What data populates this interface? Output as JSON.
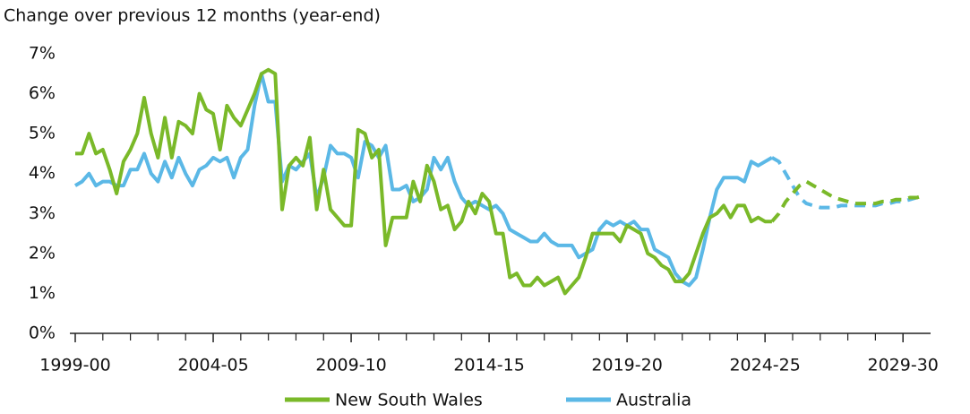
{
  "chart_data": {
    "type": "line",
    "y_axis_label": "Change over previous 12 months (year-end)",
    "x": [
      1999,
      1999.25,
      1999.5,
      1999.75,
      2000,
      2000.25,
      2000.5,
      2000.75,
      2001,
      2001.25,
      2001.5,
      2001.75,
      2002,
      2002.25,
      2002.5,
      2002.75,
      2003,
      2003.25,
      2003.5,
      2003.75,
      2004,
      2004.25,
      2004.5,
      2004.75,
      2005,
      2005.25,
      2005.5,
      2005.75,
      2006,
      2006.25,
      2006.5,
      2006.75,
      2007,
      2007.25,
      2007.5,
      2007.75,
      2008,
      2008.25,
      2008.5,
      2008.75,
      2009,
      2009.25,
      2009.5,
      2009.75,
      2010,
      2010.25,
      2010.5,
      2010.75,
      2011,
      2011.25,
      2011.5,
      2011.75,
      2012,
      2012.25,
      2012.5,
      2012.75,
      2013,
      2013.25,
      2013.5,
      2013.75,
      2014,
      2014.25,
      2014.5,
      2014.75,
      2015,
      2015.25,
      2015.5,
      2015.75,
      2016,
      2016.25,
      2016.5,
      2016.75,
      2017,
      2017.25,
      2017.5,
      2017.75,
      2018,
      2018.25,
      2018.5,
      2018.75,
      2019,
      2019.25,
      2019.5,
      2019.75,
      2020,
      2020.25,
      2020.5,
      2020.75,
      2021,
      2021.25,
      2021.5,
      2021.75,
      2022,
      2022.25,
      2022.5,
      2022.75,
      2023,
      2023.25,
      2023.5,
      2023.75,
      2024,
      2024.25,
      2024.5,
      2024.75,
      2025,
      2025.25,
      2025.5,
      2025.75,
      2026,
      2026.25,
      2026.5,
      2026.75,
      2027,
      2027.25,
      2027.5,
      2027.75,
      2028,
      2028.25,
      2028.5,
      2028.75,
      2029,
      2029.25,
      2029.5,
      2029.75
    ],
    "series": [
      {
        "name": "New South Wales",
        "color": "#7ab929",
        "values": [
          4.5,
          4.5,
          5.0,
          4.5,
          4.6,
          4.1,
          3.5,
          4.3,
          4.6,
          5.0,
          5.9,
          5.0,
          4.4,
          5.4,
          4.4,
          5.3,
          5.2,
          5.0,
          6.0,
          5.6,
          5.5,
          4.6,
          5.7,
          5.4,
          5.2,
          5.6,
          6.0,
          6.5,
          6.6,
          6.5,
          3.1,
          4.2,
          4.4,
          4.2,
          4.9,
          3.1,
          4.1,
          3.1,
          2.9,
          2.7,
          2.7,
          5.1,
          5.0,
          4.4,
          4.6,
          2.2,
          2.9,
          2.9,
          2.9,
          3.8,
          3.3,
          4.2,
          3.8,
          3.1,
          3.2,
          2.6,
          2.8,
          3.3,
          3.0,
          3.5,
          3.3,
          2.5,
          2.5,
          1.4,
          1.5,
          1.2,
          1.2,
          1.4,
          1.2,
          1.3,
          1.4,
          1.0,
          1.2,
          1.4,
          1.9,
          2.5,
          2.5,
          2.5,
          2.5,
          2.3,
          2.7,
          2.6,
          2.5,
          2.0,
          1.9,
          1.7,
          1.6,
          1.3,
          1.3,
          1.5,
          2.0,
          2.5,
          2.9,
          3.0,
          3.2,
          2.9,
          3.2,
          3.2,
          2.8,
          2.9,
          2.8,
          2.8,
          null,
          null,
          null,
          null,
          null,
          null,
          null,
          null,
          null,
          null,
          null,
          null,
          null,
          null,
          null,
          null,
          null,
          null,
          null,
          null,
          null,
          null
        ],
        "forecast_values": [
          null,
          null,
          null,
          null,
          null,
          null,
          null,
          null,
          null,
          null,
          null,
          null,
          null,
          null,
          null,
          null,
          null,
          null,
          null,
          null,
          null,
          null,
          null,
          null,
          null,
          null,
          null,
          null,
          null,
          null,
          null,
          null,
          null,
          null,
          null,
          null,
          null,
          null,
          null,
          null,
          null,
          null,
          null,
          null,
          null,
          null,
          null,
          null,
          null,
          null,
          null,
          null,
          null,
          null,
          null,
          null,
          null,
          null,
          null,
          null,
          null,
          null,
          null,
          null,
          null,
          null,
          null,
          null,
          null,
          null,
          null,
          null,
          null,
          null,
          null,
          null,
          null,
          null,
          null,
          null,
          null,
          null,
          null,
          null,
          null,
          null,
          null,
          null,
          null,
          null,
          null,
          null,
          null,
          null,
          null,
          null,
          null,
          null,
          null,
          null,
          null,
          2.8,
          3.0,
          3.3,
          3.5,
          3.7,
          3.8,
          3.7,
          3.6,
          3.5,
          3.4,
          3.35,
          3.3,
          3.25,
          3.25,
          3.25,
          3.25,
          3.3,
          3.3,
          3.35,
          3.35,
          3.4,
          3.4,
          3.45
        ]
      },
      {
        "name": "Australia",
        "color": "#5bb8e6",
        "values": [
          3.7,
          3.8,
          4.0,
          3.7,
          3.8,
          3.8,
          3.7,
          3.7,
          4.1,
          4.1,
          4.5,
          4.0,
          3.8,
          4.3,
          3.9,
          4.4,
          4.0,
          3.7,
          4.1,
          4.2,
          4.4,
          4.3,
          4.4,
          3.9,
          4.4,
          4.6,
          5.7,
          6.5,
          5.8,
          5.8,
          3.8,
          4.2,
          4.1,
          4.3,
          4.5,
          3.4,
          3.9,
          4.7,
          4.5,
          4.5,
          4.4,
          3.9,
          4.8,
          4.7,
          4.4,
          4.7,
          3.6,
          3.6,
          3.7,
          3.3,
          3.4,
          3.6,
          4.4,
          4.1,
          4.4,
          3.8,
          3.4,
          3.2,
          3.3,
          3.2,
          3.1,
          3.2,
          3.0,
          2.6,
          2.5,
          2.4,
          2.3,
          2.3,
          2.5,
          2.3,
          2.2,
          2.2,
          2.2,
          1.9,
          2.0,
          2.1,
          2.6,
          2.8,
          2.7,
          2.8,
          2.7,
          2.8,
          2.6,
          2.6,
          2.1,
          2.0,
          1.9,
          1.5,
          1.3,
          1.2,
          1.4,
          2.1,
          2.9,
          3.6,
          3.9,
          3.9,
          3.9,
          3.8,
          4.3,
          4.2,
          4.3,
          4.4,
          null,
          null,
          null,
          null,
          null,
          null,
          null,
          null,
          null,
          null,
          null,
          null,
          null,
          null,
          null,
          null,
          null,
          null,
          null,
          null,
          null,
          null
        ],
        "forecast_values": [
          null,
          null,
          null,
          null,
          null,
          null,
          null,
          null,
          null,
          null,
          null,
          null,
          null,
          null,
          null,
          null,
          null,
          null,
          null,
          null,
          null,
          null,
          null,
          null,
          null,
          null,
          null,
          null,
          null,
          null,
          null,
          null,
          null,
          null,
          null,
          null,
          null,
          null,
          null,
          null,
          null,
          null,
          null,
          null,
          null,
          null,
          null,
          null,
          null,
          null,
          null,
          null,
          null,
          null,
          null,
          null,
          null,
          null,
          null,
          null,
          null,
          null,
          null,
          null,
          null,
          null,
          null,
          null,
          null,
          null,
          null,
          null,
          null,
          null,
          null,
          null,
          null,
          null,
          null,
          null,
          null,
          null,
          null,
          null,
          null,
          null,
          null,
          null,
          null,
          null,
          null,
          null,
          null,
          null,
          null,
          null,
          null,
          null,
          null,
          null,
          null,
          4.4,
          4.3,
          4.0,
          3.7,
          3.4,
          3.25,
          3.2,
          3.15,
          3.15,
          3.15,
          3.2,
          3.2,
          3.2,
          3.2,
          3.2,
          3.2,
          3.25,
          3.25,
          3.3,
          3.3,
          3.35,
          3.4,
          3.4
        ]
      }
    ],
    "xlim": [
      1999,
      2030
    ],
    "xticks": [
      {
        "value": 1999,
        "label": "1999-00"
      },
      {
        "value": 2004,
        "label": "2004-05"
      },
      {
        "value": 2009,
        "label": "2009-10"
      },
      {
        "value": 2014,
        "label": "2014-15"
      },
      {
        "value": 2019,
        "label": "2019-20"
      },
      {
        "value": 2024,
        "label": "2024-25"
      },
      {
        "value": 2029,
        "label": "2029-30"
      }
    ],
    "xminorticks": [
      2000,
      2001,
      2002,
      2003,
      2005,
      2006,
      2007,
      2008,
      2010,
      2011,
      2012,
      2013,
      2015,
      2016,
      2017,
      2018,
      2020,
      2021,
      2022,
      2023,
      2025,
      2026,
      2027,
      2028
    ],
    "ylim": [
      0,
      7
    ],
    "yticks": [
      {
        "value": 0,
        "label": "0%"
      },
      {
        "value": 1,
        "label": "1%"
      },
      {
        "value": 2,
        "label": "2%"
      },
      {
        "value": 3,
        "label": "3%"
      },
      {
        "value": 4,
        "label": "4%"
      },
      {
        "value": 5,
        "label": "5%"
      },
      {
        "value": 6,
        "label": "6%"
      },
      {
        "value": 7,
        "label": "7%"
      }
    ],
    "legend": "bottom"
  }
}
